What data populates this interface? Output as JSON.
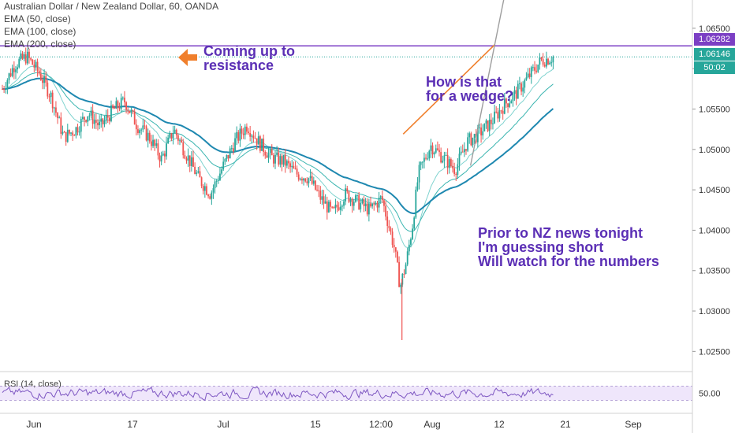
{
  "chart_data": {
    "type": "candlestick",
    "title": "Australian Dollar / New Zealand Dollar, 60, OANDA",
    "indicators": [
      "EMA (50, close)",
      "EMA (100, close)",
      "EMA (200, close)"
    ],
    "x_ticks": [
      "Jun",
      "17",
      "Jul",
      "15",
      "12:00",
      "Aug",
      "12",
      "21",
      "Sep"
    ],
    "y_ticks": [
      "1.06500",
      "1.06000",
      "1.05500",
      "1.05000",
      "1.04500",
      "1.04000",
      "1.03500",
      "1.03000",
      "1.02500"
    ],
    "ylim": [
      1.0225,
      1.0685
    ],
    "resistance": 1.06282,
    "last_price": 1.06146,
    "countdown": "50:02",
    "path_days": [
      0,
      2,
      4,
      6,
      8,
      10,
      12,
      14,
      16,
      18,
      20,
      22,
      24,
      26,
      28,
      30,
      32,
      34,
      36,
      38,
      40,
      42,
      44,
      46,
      48,
      50,
      52,
      54,
      56,
      58,
      60,
      62,
      64,
      65,
      66,
      67,
      68,
      70,
      72,
      74,
      76,
      78,
      80,
      82,
      84,
      86,
      88,
      90
    ],
    "path_close": [
      1.0575,
      1.0605,
      1.0615,
      1.0595,
      1.0565,
      1.0515,
      1.0525,
      1.0545,
      1.0528,
      1.0548,
      1.056,
      1.053,
      1.0515,
      1.0488,
      1.0525,
      1.0495,
      1.0465,
      1.0445,
      1.0478,
      1.051,
      1.053,
      1.0508,
      1.049,
      1.0485,
      1.047,
      1.0465,
      1.044,
      1.042,
      1.0445,
      1.0435,
      1.0425,
      1.044,
      1.038,
      1.033,
      1.036,
      1.0405,
      1.047,
      1.0505,
      1.049,
      1.0475,
      1.051,
      1.052,
      1.0535,
      1.0555,
      1.057,
      1.059,
      1.061,
      1.0614
    ],
    "wedge_upper": [
      [
        65.5,
        1.0519
      ],
      [
        80.5,
        1.063
      ]
    ],
    "wedge_lower": [
      [
        76.5,
        1.048
      ],
      [
        82,
        1.0688
      ]
    ],
    "rsi": {
      "label": "RSI (14, close)",
      "value": "50.00",
      "upper": 70,
      "lower": 30
    }
  },
  "annotations": {
    "resistance_lines": [
      "Coming up to",
      "resistance"
    ],
    "wedge_lines": [
      "How is that",
      "for a wedge?"
    ],
    "news_lines": [
      "Prior to NZ news tonight",
      "I'm guessing short",
      "Will watch for the numbers"
    ]
  },
  "colors": {
    "up": "#26a69a",
    "down": "#ef5350",
    "ema50": "#7fd3cf",
    "ema100": "#3bb5b0",
    "ema200": "#1e88b0",
    "resistance": "#7b3fc4",
    "wedge_upper": "#f07f2c",
    "wedge_lower": "#9e9e9e",
    "arrow": "#f07f2c",
    "tag_res": "#7b3fc4",
    "tag_last": "#26a69a",
    "rsi": "#7e57c2"
  }
}
